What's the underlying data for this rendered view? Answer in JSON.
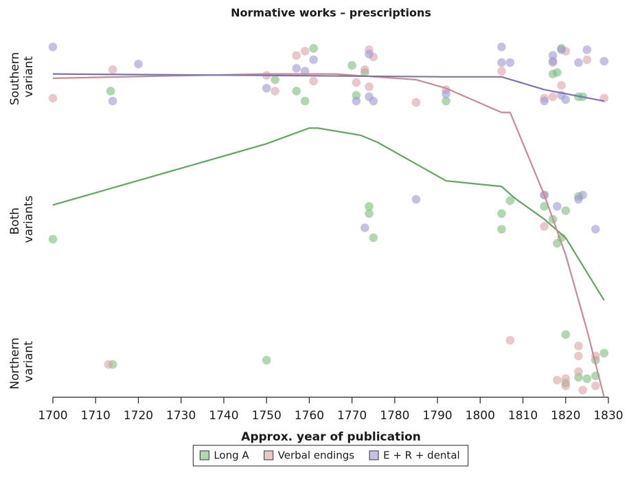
{
  "chart_data": [
    {
      "type": "scatter",
      "title": "Normative works – prescriptions",
      "xlabel": "Approx. year of publication",
      "xlim": [
        1700,
        1830
      ],
      "xticks": [
        1700,
        1710,
        1720,
        1730,
        1740,
        1750,
        1760,
        1770,
        1780,
        1790,
        1800,
        1810,
        1820,
        1830
      ],
      "ylim": [
        -0.25,
        2.25
      ],
      "yticks": [
        {
          "value": 0,
          "label": "Northern variant"
        },
        {
          "value": 1,
          "label": "Both variants"
        },
        {
          "value": 2,
          "label": "Southern variant"
        }
      ],
      "legend": "bottom",
      "series": [
        {
          "name": "Long A",
          "color": "#7cbd7c",
          "x": [
            1700,
            1714,
            1713.5,
            1750,
            1752,
            1757,
            1759,
            1761,
            1770,
            1771,
            1773,
            1774,
            1774,
            1775,
            1792,
            1805,
            1805,
            1807,
            1815,
            1817,
            1817,
            1818,
            1818,
            1819,
            1819,
            1820,
            1820,
            1820,
            1823,
            1823,
            1824,
            1823,
            1825,
            1827,
            1827,
            1829
          ],
          "values": [
            0.86,
            -0.02,
            1.9,
            0.01,
            1.98,
            1.9,
            1.83,
            2.2,
            2.08,
            1.87,
            2.03,
            1.09,
            1.04,
            0.87,
            1.83,
            1.04,
            0.93,
            1.13,
            1.09,
            1.0,
            2.02,
            2.03,
            0.83,
            2.2,
            0.87,
            1.06,
            0.19,
            -0.15,
            1.86,
            1.16,
            1.86,
            -0.11,
            -0.12,
            0.01,
            -0.1,
            0.06
          ]
        },
        {
          "name": "Verbal endings",
          "color": "#d8a4a7",
          "x": [
            1700,
            1713,
            1714,
            1750,
            1752,
            1757,
            1759,
            1761,
            1771,
            1773,
            1774,
            1774,
            1775,
            1785,
            1792,
            1805,
            1807,
            1815,
            1815,
            1815,
            1817,
            1817,
            1818,
            1819,
            1820,
            1820,
            1820,
            1823,
            1823,
            1823,
            1824,
            1825,
            1827,
            1827,
            1829
          ],
          "values": [
            1.85,
            -0.02,
            2.05,
            2.01,
            1.9,
            2.15,
            2.18,
            1.97,
            1.96,
            2.05,
            2.19,
            1.93,
            2.14,
            1.82,
            1.91,
            2.04,
            0.15,
            1.85,
            0.95,
            1.17,
            1.86,
            2.1,
            -0.13,
            1.94,
            2.18,
            -0.12,
            -0.17,
            0.11,
            0.04,
            -0.07,
            -0.2,
            2.12,
            0.04,
            -0.17,
            1.85
          ]
        },
        {
          "name": "E + R + dental",
          "color": "#9c97d2",
          "x": [
            1700,
            1714,
            1720,
            1750,
            1757,
            1759,
            1761,
            1771,
            1773,
            1774,
            1774,
            1775,
            1785,
            1792,
            1805,
            1805,
            1807,
            1815,
            1815,
            1817,
            1817,
            1818,
            1819,
            1819,
            1820,
            1823,
            1823,
            1824,
            1825,
            1827,
            1829
          ],
          "values": [
            2.21,
            1.83,
            2.09,
            1.92,
            2.06,
            2.04,
            2.12,
            1.83,
            0.94,
            2.16,
            1.86,
            1.83,
            1.14,
            1.88,
            2.21,
            2.1,
            2.1,
            1.17,
            1.83,
            2.15,
            2.11,
            1.09,
            2.19,
            1.87,
            1.84,
            2.1,
            1.14,
            1.17,
            2.19,
            0.93,
            2.11
          ]
        }
      ]
    },
    {
      "type": "line",
      "series": [
        {
          "color": "#5fa75f",
          "x": [
            1700,
            1750,
            1760,
            1762,
            1772,
            1776,
            1792,
            1805,
            1808,
            1815,
            1820,
            1829
          ],
          "values": [
            1.1,
            1.53,
            1.64,
            1.64,
            1.59,
            1.54,
            1.27,
            1.23,
            1.15,
            1.0,
            0.87,
            0.43
          ]
        },
        {
          "color": "#c98a90",
          "x": [
            1700,
            1750,
            1766,
            1785,
            1792,
            1805,
            1807,
            1815,
            1820,
            1825,
            1829
          ],
          "values": [
            1.99,
            2.02,
            2.02,
            1.98,
            1.92,
            1.75,
            1.75,
            1.17,
            0.75,
            0.22,
            -0.25
          ]
        },
        {
          "color": "#7a73b7",
          "x": [
            1700,
            1750,
            1792,
            1805,
            1815,
            1829
          ],
          "values": [
            2.02,
            2.01,
            2.0,
            2.0,
            1.91,
            1.83
          ]
        }
      ]
    }
  ]
}
